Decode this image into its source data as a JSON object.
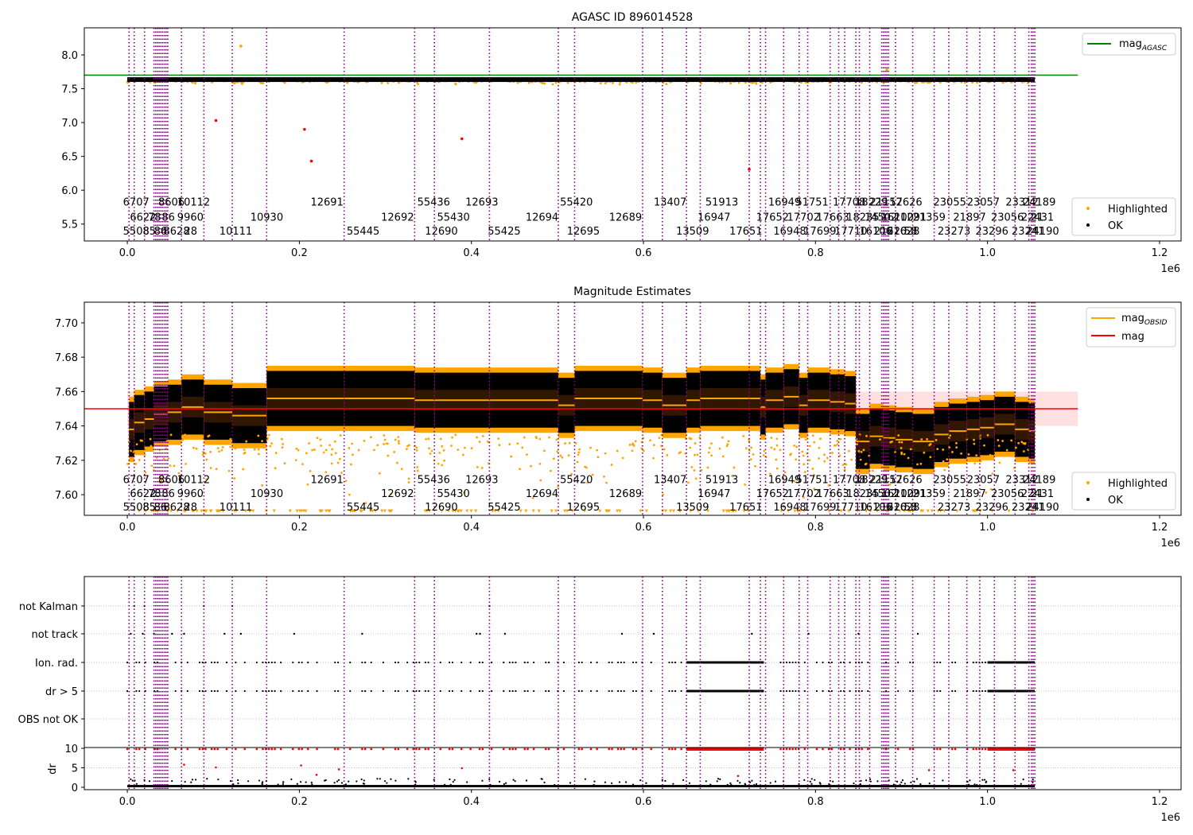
{
  "figure": {
    "axis_exponent_label": "1e6",
    "x_ticks": [
      0.0,
      0.2,
      0.4,
      0.6,
      0.8,
      1.0,
      1.2
    ],
    "x_tick_labels": [
      "0.0",
      "0.2",
      "0.4",
      "0.6",
      "0.8",
      "1.0",
      "1.2"
    ],
    "xlim": [
      -0.05,
      1.225
    ]
  },
  "colors": {
    "highlighted": "#ffa500",
    "ok": "#000000",
    "obsid_line": "#800080",
    "mag_agasc": "#008000",
    "mag": "#ff0000",
    "mag_obsid": "#ffa500",
    "red_points": "#ff0000"
  },
  "obsid_lines": [
    0.002,
    0.008,
    0.02,
    0.031,
    0.033,
    0.035,
    0.037,
    0.039,
    0.041,
    0.043,
    0.045,
    0.047,
    0.063,
    0.089,
    0.122,
    0.162,
    0.252,
    0.334,
    0.357,
    0.421,
    0.501,
    0.52,
    0.599,
    0.622,
    0.65,
    0.666,
    0.723,
    0.736,
    0.742,
    0.763,
    0.781,
    0.791,
    0.817,
    0.827,
    0.834,
    0.847,
    0.851,
    0.863,
    0.877,
    0.879,
    0.881,
    0.883,
    0.885,
    0.893,
    0.913,
    0.938,
    0.955,
    0.976,
    0.991,
    1.008,
    1.032,
    1.048,
    1.051,
    1.053,
    1.055
  ],
  "obsid_labels": [
    {
      "t": "5508",
      "x": -0.005,
      "row": 2
    },
    {
      "t": "6622",
      "x": 0.003,
      "row": 1
    },
    {
      "t": "6707",
      "x": -0.005,
      "row": 0
    },
    {
      "t": "85",
      "x": 0.018,
      "row": 2
    },
    {
      "t": "78",
      "x": 0.024,
      "row": 1
    },
    {
      "t": "8606",
      "x": 0.036,
      "row": 0
    },
    {
      "t": "86",
      "x": 0.031,
      "row": 2
    },
    {
      "t": "86",
      "x": 0.04,
      "row": 1
    },
    {
      "t": "8628",
      "x": 0.042,
      "row": 2
    },
    {
      "t": "10112",
      "x": 0.058,
      "row": 0
    },
    {
      "t": "9960",
      "x": 0.058,
      "row": 1
    },
    {
      "t": "28",
      "x": 0.066,
      "row": 2
    },
    {
      "t": "10111",
      "x": 0.107,
      "row": 2
    },
    {
      "t": "10930",
      "x": 0.143,
      "row": 1
    },
    {
      "t": "12691",
      "x": 0.213,
      "row": 0
    },
    {
      "t": "55445",
      "x": 0.255,
      "row": 2
    },
    {
      "t": "12692",
      "x": 0.295,
      "row": 1
    },
    {
      "t": "55436",
      "x": 0.337,
      "row": 0
    },
    {
      "t": "55430",
      "x": 0.36,
      "row": 1
    },
    {
      "t": "12690",
      "x": 0.346,
      "row": 2
    },
    {
      "t": "12693",
      "x": 0.393,
      "row": 0
    },
    {
      "t": "55425",
      "x": 0.419,
      "row": 2
    },
    {
      "t": "12694",
      "x": 0.463,
      "row": 1
    },
    {
      "t": "55420",
      "x": 0.503,
      "row": 0
    },
    {
      "t": "12695",
      "x": 0.511,
      "row": 2
    },
    {
      "t": "12689",
      "x": 0.56,
      "row": 1
    },
    {
      "t": "13407",
      "x": 0.612,
      "row": 0
    },
    {
      "t": "13509",
      "x": 0.638,
      "row": 2
    },
    {
      "t": "16947",
      "x": 0.663,
      "row": 1
    },
    {
      "t": "51913",
      "x": 0.672,
      "row": 0
    },
    {
      "t": "17651",
      "x": 0.7,
      "row": 2
    },
    {
      "t": "17652",
      "x": 0.731,
      "row": 1
    },
    {
      "t": "16949",
      "x": 0.745,
      "row": 0
    },
    {
      "t": "16948",
      "x": 0.751,
      "row": 2
    },
    {
      "t": "17702",
      "x": 0.767,
      "row": 1
    },
    {
      "t": "51751",
      "x": 0.777,
      "row": 0
    },
    {
      "t": "17699",
      "x": 0.786,
      "row": 2
    },
    {
      "t": "17663",
      "x": 0.801,
      "row": 1
    },
    {
      "t": "17708",
      "x": 0.82,
      "row": 0
    },
    {
      "t": "17710",
      "x": 0.822,
      "row": 2
    },
    {
      "t": "18235",
      "x": 0.836,
      "row": 1
    },
    {
      "t": "18229",
      "x": 0.846,
      "row": 0
    },
    {
      "t": "16106",
      "x": 0.851,
      "row": 2
    },
    {
      "t": "14502",
      "x": 0.857,
      "row": 1
    },
    {
      "t": "21152",
      "x": 0.863,
      "row": 0
    },
    {
      "t": "21620",
      "x": 0.868,
      "row": 2
    },
    {
      "t": "16100",
      "x": 0.876,
      "row": 1
    },
    {
      "t": "17626",
      "x": 0.886,
      "row": 0
    },
    {
      "t": "21628",
      "x": 0.883,
      "row": 2
    },
    {
      "t": "21291",
      "x": 0.891,
      "row": 1
    },
    {
      "t": "58",
      "x": 0.903,
      "row": 2
    },
    {
      "t": "21359",
      "x": 0.913,
      "row": 1
    },
    {
      "t": "23055",
      "x": 0.937,
      "row": 0
    },
    {
      "t": "23273",
      "x": 0.942,
      "row": 2
    },
    {
      "t": "21897",
      "x": 0.96,
      "row": 1
    },
    {
      "t": "23057",
      "x": 0.976,
      "row": 0
    },
    {
      "t": "23296",
      "x": 0.986,
      "row": 2
    },
    {
      "t": "23056",
      "x": 1.004,
      "row": 1
    },
    {
      "t": "23312",
      "x": 1.021,
      "row": 0
    },
    {
      "t": "23241",
      "x": 1.028,
      "row": 2
    },
    {
      "t": "22431",
      "x": 1.039,
      "row": 1
    },
    {
      "t": "24189",
      "x": 1.041,
      "row": 0
    },
    {
      "t": "24190",
      "x": 1.045,
      "row": 2
    },
    {
      "t": "21",
      "x": 1.05,
      "row": 1
    }
  ],
  "panel1": {
    "title": "AGASC ID 896014528",
    "ylim": [
      5.25,
      8.4
    ],
    "y_ticks": [
      5.5,
      6.0,
      6.5,
      7.0,
      7.5,
      8.0
    ],
    "y_tick_labels": [
      "5.5",
      "6.0",
      "6.5",
      "7.0",
      "7.5",
      "8.0"
    ],
    "label_rows_y": [
      5.83,
      5.61,
      5.4
    ],
    "legend_top": [
      {
        "label": "mag",
        "sub": "AGASC",
        "color": "#008000"
      }
    ],
    "legend_bottom": [
      {
        "label": "Highlighted",
        "color": "#ffa500"
      },
      {
        "label": "OK",
        "color": "#000000"
      }
    ]
  },
  "panel2": {
    "title": "Magnitude Estimates",
    "ylim": [
      7.588,
      7.712
    ],
    "y_ticks": [
      7.6,
      7.62,
      7.64,
      7.66,
      7.68,
      7.7
    ],
    "y_tick_labels": [
      "7.60",
      "7.62",
      "7.64",
      "7.66",
      "7.68",
      "7.70"
    ],
    "label_rows_y": [
      7.609,
      7.601,
      7.593
    ],
    "legend_top": [
      {
        "label": "mag",
        "sub": "OBSID",
        "color": "#ffa500"
      },
      {
        "label": "mag",
        "sub": "",
        "color": "#ff0000"
      }
    ],
    "legend_bottom": [
      {
        "label": "Highlighted",
        "color": "#ffa500"
      },
      {
        "label": "OK",
        "color": "#000000"
      }
    ]
  },
  "panel3": {
    "categories": [
      "not Kalman",
      "not track",
      "Ion. rad.",
      "dr > 5",
      "OBS not OK"
    ],
    "dr_axis_label": "dr",
    "dr_ticks": [
      0,
      5,
      10
    ],
    "dr_tick_labels": [
      "0",
      "5",
      "10"
    ]
  },
  "chart_data": {
    "type": "scatter",
    "title": "AGASC ID 896014528",
    "x_unit_label": "1e6",
    "xlim": [
      -0.05,
      1.225
    ],
    "magnitude": {
      "mag_agasc": 7.7,
      "mag": 7.65,
      "mag_band": [
        7.64,
        7.66
      ],
      "x_range": [
        0.0,
        1.105
      ],
      "outlier_points": [
        {
          "x": 0.103,
          "y": 7.03
        },
        {
          "x": 0.206,
          "y": 6.9
        },
        {
          "x": 0.389,
          "y": 6.76
        },
        {
          "x": 0.214,
          "y": 6.43
        },
        {
          "x": 0.723,
          "y": 6.31
        },
        {
          "x": 0.132,
          "y": 8.13
        },
        {
          "x": 0.883,
          "y": 7.78
        }
      ]
    },
    "mag_obsid_segments": [
      {
        "x0": 0.002,
        "x1": 0.008,
        "mean": 7.638
      },
      {
        "x0": 0.008,
        "x1": 0.02,
        "mean": 7.642
      },
      {
        "x0": 0.02,
        "x1": 0.031,
        "mean": 7.644
      },
      {
        "x0": 0.031,
        "x1": 0.047,
        "mean": 7.647
      },
      {
        "x0": 0.047,
        "x1": 0.063,
        "mean": 7.648
      },
      {
        "x0": 0.063,
        "x1": 0.089,
        "mean": 7.651
      },
      {
        "x0": 0.089,
        "x1": 0.122,
        "mean": 7.648
      },
      {
        "x0": 0.122,
        "x1": 0.162,
        "mean": 7.646
      },
      {
        "x0": 0.162,
        "x1": 0.252,
        "mean": 7.656
      },
      {
        "x0": 0.252,
        "x1": 0.334,
        "mean": 7.656
      },
      {
        "x0": 0.334,
        "x1": 0.357,
        "mean": 7.655
      },
      {
        "x0": 0.357,
        "x1": 0.421,
        "mean": 7.655
      },
      {
        "x0": 0.421,
        "x1": 0.501,
        "mean": 7.655
      },
      {
        "x0": 0.501,
        "x1": 0.52,
        "mean": 7.652
      },
      {
        "x0": 0.52,
        "x1": 0.599,
        "mean": 7.656
      },
      {
        "x0": 0.599,
        "x1": 0.622,
        "mean": 7.655
      },
      {
        "x0": 0.622,
        "x1": 0.65,
        "mean": 7.652
      },
      {
        "x0": 0.65,
        "x1": 0.666,
        "mean": 7.655
      },
      {
        "x0": 0.666,
        "x1": 0.723,
        "mean": 7.656
      },
      {
        "x0": 0.723,
        "x1": 0.736,
        "mean": 7.656
      },
      {
        "x0": 0.736,
        "x1": 0.742,
        "mean": 7.651
      },
      {
        "x0": 0.742,
        "x1": 0.763,
        "mean": 7.655
      },
      {
        "x0": 0.763,
        "x1": 0.781,
        "mean": 7.657
      },
      {
        "x0": 0.781,
        "x1": 0.791,
        "mean": 7.652
      },
      {
        "x0": 0.791,
        "x1": 0.817,
        "mean": 7.655
      },
      {
        "x0": 0.817,
        "x1": 0.834,
        "mean": 7.654
      },
      {
        "x0": 0.834,
        "x1": 0.847,
        "mean": 7.653
      },
      {
        "x0": 0.847,
        "x1": 0.863,
        "mean": 7.631
      },
      {
        "x0": 0.863,
        "x1": 0.879,
        "mean": 7.634
      },
      {
        "x0": 0.879,
        "x1": 0.893,
        "mean": 7.633
      },
      {
        "x0": 0.893,
        "x1": 0.913,
        "mean": 7.632
      },
      {
        "x0": 0.913,
        "x1": 0.938,
        "mean": 7.631
      },
      {
        "x0": 0.938,
        "x1": 0.955,
        "mean": 7.635
      },
      {
        "x0": 0.955,
        "x1": 0.976,
        "mean": 7.637
      },
      {
        "x0": 0.976,
        "x1": 0.991,
        "mean": 7.638
      },
      {
        "x0": 0.991,
        "x1": 1.008,
        "mean": 7.639
      },
      {
        "x0": 1.008,
        "x1": 1.032,
        "mean": 7.641
      },
      {
        "x0": 1.032,
        "x1": 1.048,
        "mean": 7.638
      },
      {
        "x0": 1.048,
        "x1": 1.055,
        "mean": 7.637
      }
    ],
    "flags": {
      "not_kalman_x": [
        0.008,
        0.02,
        0.089,
        0.122,
        0.421
      ],
      "not_track_x": [
        0.004,
        0.018,
        0.031,
        0.052,
        0.066,
        0.113,
        0.132,
        0.194,
        0.273,
        0.406,
        0.41,
        0.439,
        0.575,
        0.612,
        0.726,
        0.792,
        0.85,
        0.919
      ],
      "ion_rad_x_range": [
        0.0,
        1.055
      ],
      "dr5_x_range": [
        0.0,
        1.055
      ],
      "dense_segments": [
        [
          0.65,
          0.74
        ],
        [
          1.0,
          1.055
        ]
      ]
    },
    "dr_max_shown": 10
  }
}
